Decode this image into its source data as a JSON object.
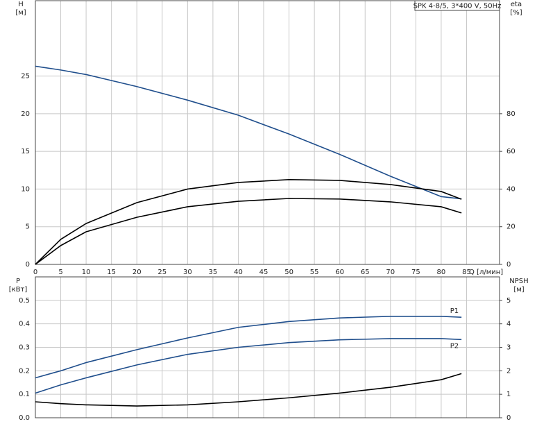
{
  "chart_data": [
    {
      "type": "line",
      "title": "SPK 4-8/5, 3*400 V, 50Hz",
      "y_label": "H",
      "y_unit": "[м]",
      "y2_label": "eta",
      "y2_unit": "[%]",
      "x_label": "Q [л/мин]",
      "x": [
        0,
        5,
        10,
        20,
        30,
        40,
        50,
        60,
        70,
        80,
        84
      ],
      "xlim": [
        0,
        91.5
      ],
      "xticks": [
        0,
        5,
        10,
        15,
        20,
        25,
        30,
        35,
        40,
        45,
        50,
        55,
        60,
        65,
        70,
        75,
        80,
        85
      ],
      "ylim": [
        0,
        35
      ],
      "yticks": [
        0,
        5,
        10,
        15,
        20,
        25
      ],
      "y2lim": [
        0,
        140
      ],
      "y2ticks": [
        0,
        20,
        40,
        60,
        80
      ],
      "grid": true,
      "series": [
        {
          "color": "#1f4e8c",
          "axis": "y",
          "values": [
            26.3,
            25.8,
            25.2,
            23.6,
            21.8,
            19.8,
            17.3,
            14.6,
            11.7,
            9.0,
            8.7
          ]
        },
        {
          "color": "#000000",
          "axis": "y2",
          "values": [
            0,
            13.3,
            21.7,
            32.8,
            40,
            43.5,
            45,
            44.6,
            42.4,
            38.7,
            34.6
          ]
        },
        {
          "color": "#000000",
          "axis": "y2",
          "values": [
            0,
            10,
            17.3,
            25,
            30.6,
            33.5,
            35,
            34.7,
            33.2,
            30.6,
            27.3
          ]
        }
      ]
    },
    {
      "type": "line",
      "y_label": "P",
      "y_unit": "[кВт]",
      "y2_label": "NPSH",
      "y2_unit": "[м]",
      "x": [
        0,
        5,
        10,
        20,
        30,
        40,
        50,
        60,
        70,
        80,
        84
      ],
      "xlim": [
        0,
        91.5
      ],
      "ylim": [
        0,
        0.6
      ],
      "yticks": [
        {
          "value": 0,
          "label": "0.0"
        },
        0.1,
        0.2,
        0.3,
        0.4,
        0.5
      ],
      "y2lim": [
        0,
        6
      ],
      "y2ticks": [
        0,
        1,
        2,
        3,
        4,
        5
      ],
      "grid": true,
      "series": [
        {
          "name": "P1",
          "color": "#1f4e8c",
          "axis": "y",
          "values": [
            0.17,
            0.2,
            0.235,
            0.29,
            0.34,
            0.385,
            0.41,
            0.425,
            0.432,
            0.432,
            0.428
          ]
        },
        {
          "name": "P2",
          "color": "#1f4e8c",
          "axis": "y",
          "values": [
            0.105,
            0.14,
            0.17,
            0.225,
            0.27,
            0.3,
            0.32,
            0.332,
            0.337,
            0.337,
            0.333
          ]
        },
        {
          "color": "#000000",
          "axis": "y2",
          "values": [
            0.68,
            0.6,
            0.55,
            0.5,
            0.55,
            0.68,
            0.85,
            1.05,
            1.3,
            1.62,
            1.88
          ]
        }
      ]
    }
  ]
}
